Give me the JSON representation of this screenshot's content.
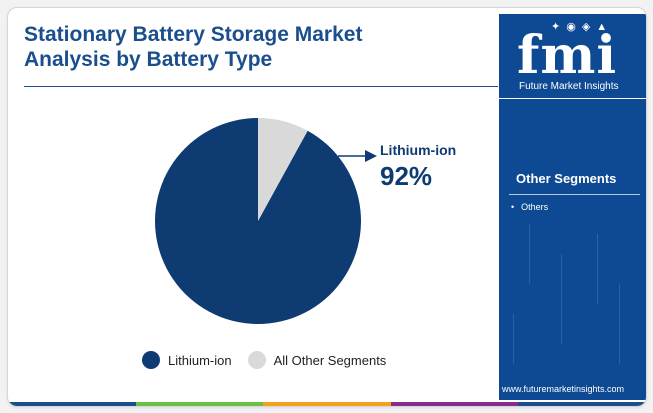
{
  "header": {
    "title_line1": "Stationary Battery Storage Market",
    "title_line2": "Analysis by Battery Type"
  },
  "chart_data": {
    "type": "pie",
    "slices": [
      {
        "label": "Lithium-ion",
        "value": 92,
        "color": "#0d3b72"
      },
      {
        "label": "All Other Segments",
        "value": 8,
        "color": "#d9d9d9"
      }
    ],
    "callout": {
      "label": "Lithium-ion",
      "value_text": "92%"
    },
    "legend": [
      {
        "label": "Lithium-ion",
        "color": "#0d3b72"
      },
      {
        "label": "All Other Segments",
        "color": "#d9d9d9"
      }
    ],
    "legend_position": "bottom"
  },
  "sidebar": {
    "logo_letters": "fmi",
    "logo_text": "Future Market Insights",
    "segments_title": "Other Segments",
    "segments": [
      "Others"
    ],
    "website": "www.futuremarketinsights.com"
  },
  "colors": {
    "title": "#1a4e8c",
    "primary": "#0d3b72",
    "sidebar_bg": "#0e4a94",
    "other": "#d9d9d9",
    "bottom_bar": [
      "#1a4e8c",
      "#6cc04a",
      "#f4a11d",
      "#8a2d8a",
      "#1a4e8c"
    ]
  }
}
